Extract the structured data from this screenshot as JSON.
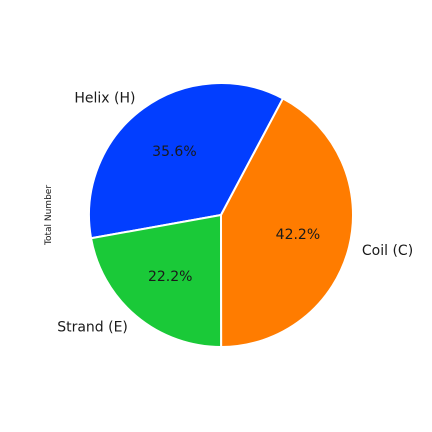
{
  "chart_data": {
    "type": "pie",
    "ylabel": "Total Number",
    "labels": [
      "Helix (H)",
      "Strand (E)",
      "Coil (C)"
    ],
    "values": [
      35.6,
      22.2,
      42.2
    ],
    "percent_labels": [
      "35.6%",
      "22.2%",
      "42.2%"
    ],
    "colors": [
      "#023EFF",
      "#1AC938",
      "#FF7C00"
    ],
    "start_angle_deg": 62,
    "direction": "counterclockwise",
    "edge_color": "#ffffff",
    "legend": "none"
  }
}
